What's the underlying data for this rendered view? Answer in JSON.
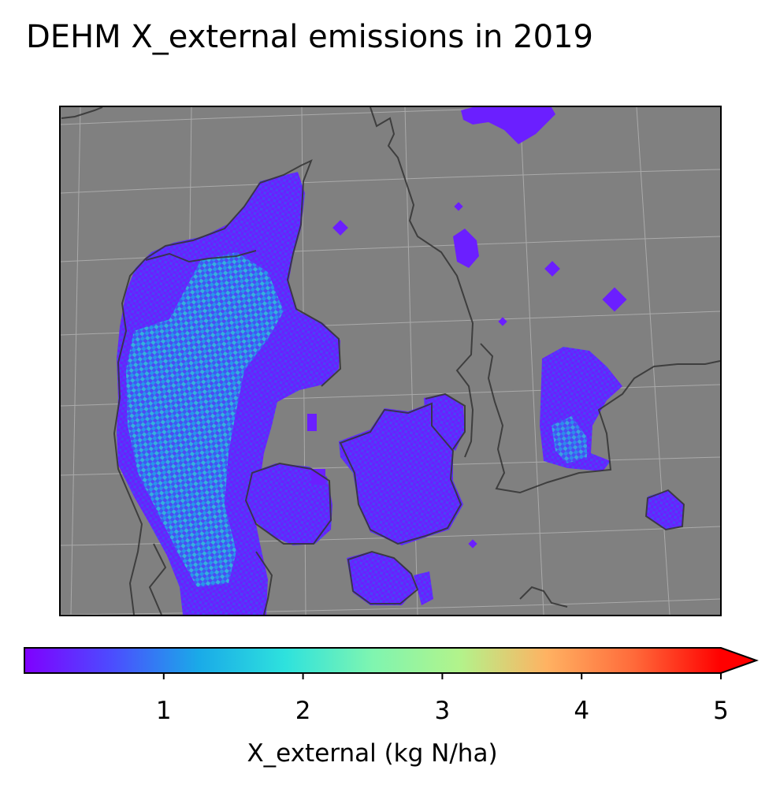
{
  "title": "DEHM X_external emissions in 2019",
  "map": {
    "variable": "X_external",
    "year": "2019",
    "background_color": "#808080",
    "coastline_color": "#333333",
    "gridline_color": "#b5b5b5"
  },
  "colorbar": {
    "label": "X_external (kg N/ha)",
    "colormap": "rainbow",
    "min": 0,
    "max": 5,
    "extend": "max",
    "ticks": [
      1,
      2,
      3,
      4,
      5
    ],
    "tick_labels": [
      "1",
      "2",
      "3",
      "4",
      "5"
    ]
  }
}
